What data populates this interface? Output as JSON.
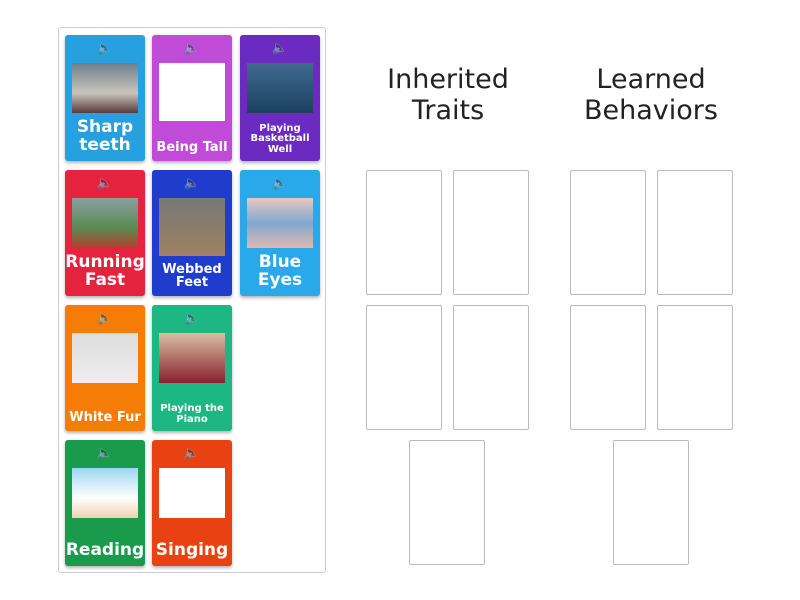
{
  "cards": [
    {
      "label": "Sharp teeth",
      "color": "#27a0df",
      "image": "shark"
    },
    {
      "label": "Being Tall",
      "color": "#c04bd9",
      "image": "tall-person"
    },
    {
      "label": "Playing Basketball Well",
      "color": "#6b2bc0",
      "image": "basketball"
    },
    {
      "label": "Running Fast",
      "color": "#e6233f",
      "image": "runner"
    },
    {
      "label": "Webbed Feet",
      "color": "#1f3ccc",
      "image": "webbed-foot"
    },
    {
      "label": "Blue Eyes",
      "color": "#29a9ea",
      "image": "eye"
    },
    {
      "label": "White Fur",
      "color": "#f67d05",
      "image": "polar-bear"
    },
    {
      "label": "Playing the Piano",
      "color": "#1cb783",
      "image": "piano"
    },
    {
      "label": "Reading",
      "color": "#1a9a4b",
      "image": "reading"
    },
    {
      "label": "Singing",
      "color": "#e84212",
      "image": "singing"
    }
  ],
  "groups": [
    {
      "title": "Inherited Traits"
    },
    {
      "title": "Learned Behaviors"
    }
  ]
}
